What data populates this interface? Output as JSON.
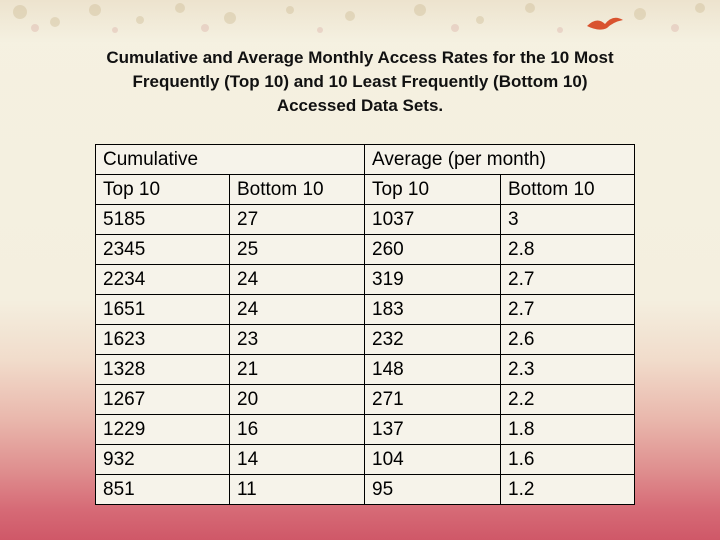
{
  "title": {
    "line1": "Cumulative and Average Monthly Access Rates for the 10 Most",
    "line2": "Frequently (Top 10) and 10 Least Frequently (Bottom 10)",
    "line3": "Accessed Data Sets."
  },
  "table": {
    "group_headers": [
      "Cumulative",
      "Average (per month)"
    ],
    "sub_headers": [
      "Top 10",
      "Bottom 10",
      "Top 10",
      "Bottom 10"
    ],
    "rows": [
      [
        "5185",
        "27",
        "1037",
        "3"
      ],
      [
        "2345",
        "25",
        "260",
        "2.8"
      ],
      [
        "2234",
        "24",
        "319",
        "2.7"
      ],
      [
        "1651",
        "24",
        "183",
        "2.7"
      ],
      [
        "1623",
        "23",
        "232",
        "2.6"
      ],
      [
        "1328",
        "21",
        "148",
        "2.3"
      ],
      [
        "1267",
        "20",
        "271",
        "2.2"
      ],
      [
        "1229",
        "16",
        "137",
        "1.8"
      ],
      [
        "932",
        "14",
        "104",
        "1.6"
      ],
      [
        "851",
        "11",
        "95",
        "1.2"
      ]
    ]
  },
  "colors": {
    "background_top": "#f5f1e1",
    "background_bottom": "#cf5868",
    "accent_bird": "#d9532f"
  }
}
